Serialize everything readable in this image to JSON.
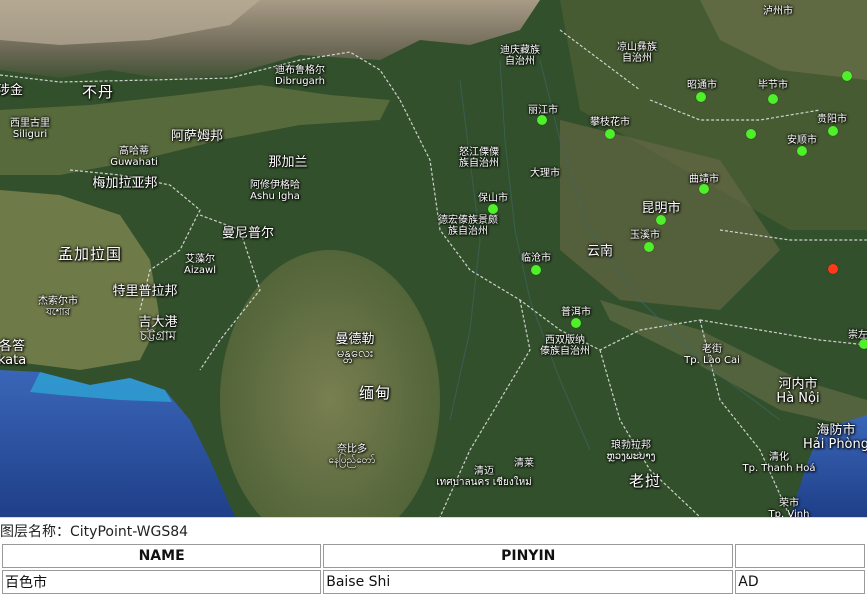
{
  "map": {
    "labels": [
      {
        "name": "label-lhunze",
        "text": "涉金",
        "cls": "lbl-region"
      },
      {
        "name": "label-bhutan",
        "text": "不丹",
        "cls": "lbl-country"
      },
      {
        "name": "label-siliguri",
        "text": "西里古里",
        "sub": "Siliguri",
        "cls": "lbl-small"
      },
      {
        "name": "label-guwahati",
        "text": "高哈蒂",
        "sub": "Guwahati",
        "cls": "lbl-small"
      },
      {
        "name": "label-assam",
        "text": "阿萨姆邦",
        "cls": "lbl-region"
      },
      {
        "name": "label-dibrugarh",
        "text": "迪布鲁格尔",
        "sub": "Dibrugarh",
        "cls": "lbl-small"
      },
      {
        "name": "label-nagaland",
        "text": "那加兰",
        "cls": "lbl-region"
      },
      {
        "name": "label-ashu-igha",
        "text": "阿修伊格哈",
        "sub": "Ashu Igha",
        "cls": "lbl-small"
      },
      {
        "name": "label-meghalaya",
        "text": "梅加拉亚邦",
        "cls": "lbl-region"
      },
      {
        "name": "label-bangladesh",
        "text": "孟加拉国",
        "cls": "lbl-country"
      },
      {
        "name": "label-manipur",
        "text": "曼尼普尔",
        "cls": "lbl-region"
      },
      {
        "name": "label-aizawl",
        "text": "艾藻尔",
        "sub": "Aizawl",
        "cls": "lbl-small"
      },
      {
        "name": "label-tripura",
        "text": "特里普拉邦",
        "cls": "lbl-region"
      },
      {
        "name": "label-sylhet",
        "text": "杰索尔市",
        "sub": "যশোর",
        "cls": "lbl-small"
      },
      {
        "name": "label-chittagong",
        "text": "吉大港",
        "sub": "চট্টগ্রাম",
        "cls": "lbl-region"
      },
      {
        "name": "label-kolkata",
        "text": "各答",
        "sub": "kata",
        "cls": "lbl-region"
      },
      {
        "name": "label-mandalay",
        "text": "曼德勒",
        "sub": "မန္တလေး",
        "cls": "lbl-region"
      },
      {
        "name": "label-myanmar",
        "text": "缅甸",
        "cls": "lbl-country"
      },
      {
        "name": "label-naypyidaw",
        "text": "奈比多",
        "sub": "နေပြည်တော်",
        "cls": "lbl-small"
      },
      {
        "name": "label-diqing",
        "text": "迪庆藏族",
        "sub": "自治州",
        "cls": "lbl-small"
      },
      {
        "name": "label-liangshan",
        "text": "凉山彝族",
        "sub": "自治州",
        "cls": "lbl-small"
      },
      {
        "name": "label-luzhou",
        "text": "泸州市",
        "cls": "lbl-small"
      },
      {
        "name": "label-lijiang",
        "text": "丽江市",
        "cls": "lbl-small"
      },
      {
        "name": "label-panzhihua",
        "text": "攀枝花市",
        "cls": "lbl-small"
      },
      {
        "name": "label-zhaotong",
        "text": "昭通市",
        "cls": "lbl-small"
      },
      {
        "name": "label-bijie",
        "text": "毕节市",
        "cls": "lbl-small"
      },
      {
        "name": "label-guiyang",
        "text": "贵阳市",
        "cls": "lbl-small"
      },
      {
        "name": "label-anshun",
        "text": "安顺市",
        "cls": "lbl-small"
      },
      {
        "name": "label-nujiang",
        "text": "怒江傈僳",
        "sub": "族自治州",
        "cls": "lbl-small"
      },
      {
        "name": "label-dali",
        "text": "大理市",
        "cls": "lbl-small"
      },
      {
        "name": "label-qujing",
        "text": "曲靖市",
        "cls": "lbl-small"
      },
      {
        "name": "label-baoshan",
        "text": "保山市",
        "cls": "lbl-small"
      },
      {
        "name": "label-dehong",
        "text": "德宏傣族景颇",
        "sub": "族自治州",
        "cls": "lbl-small"
      },
      {
        "name": "label-kunming",
        "text": "昆明市",
        "cls": "lbl-region"
      },
      {
        "name": "label-yuxi",
        "text": "玉溪市",
        "cls": "lbl-small"
      },
      {
        "name": "label-yunnan",
        "text": "云南",
        "cls": "lbl-region"
      },
      {
        "name": "label-lincang",
        "text": "临沧市",
        "cls": "lbl-small"
      },
      {
        "name": "label-puer",
        "text": "普洱市",
        "cls": "lbl-small"
      },
      {
        "name": "label-xishuangbanna",
        "text": "西双版纳",
        "sub": "傣族自治州",
        "cls": "lbl-small"
      },
      {
        "name": "label-laocai",
        "text": "老街",
        "sub": "Tp. Lào Cai",
        "cls": "lbl-small"
      },
      {
        "name": "label-hanoi",
        "text": "河内市",
        "sub": "Hà Nội",
        "cls": "lbl-region"
      },
      {
        "name": "label-haiphong",
        "text": "海防市",
        "sub": "Hải Phòng",
        "cls": "lbl-region"
      },
      {
        "name": "label-luangprabang",
        "text": "琅勃拉邦",
        "sub": "ຫຼວງພະບາງ",
        "cls": "lbl-small"
      },
      {
        "name": "label-laos",
        "text": "老挝",
        "cls": "lbl-country"
      },
      {
        "name": "label-thanhhoa",
        "text": "清化",
        "sub": "Tp. Thanh Hoá",
        "cls": "lbl-small"
      },
      {
        "name": "label-chiangmai",
        "text": "清迈",
        "sub": "เทศบาลนคร เชียงใหม่",
        "cls": "lbl-small"
      },
      {
        "name": "label-qingmai-small",
        "text": "清莱",
        "cls": "lbl-small"
      },
      {
        "name": "label-vinh",
        "text": "荣市",
        "sub": "Tp. Vinh",
        "cls": "lbl-small"
      },
      {
        "name": "label-chongzuo",
        "text": "崇左",
        "cls": "lbl-small"
      }
    ],
    "points": [
      {
        "name": "city-point-lijiang",
        "color": "#4ef02a"
      },
      {
        "name": "city-point-panzhihua",
        "color": "#4ef02a"
      },
      {
        "name": "city-point-zhaotong",
        "color": "#4ef02a"
      },
      {
        "name": "city-point-bijie",
        "color": "#4ef02a"
      },
      {
        "name": "city-point-northeast",
        "color": "#4ef02a"
      },
      {
        "name": "city-point-guiyang",
        "color": "#4ef02a"
      },
      {
        "name": "city-point-anshun",
        "color": "#4ef02a"
      },
      {
        "name": "city-point-liupanshui",
        "color": "#4ef02a"
      },
      {
        "name": "city-point-qujing",
        "color": "#4ef02a"
      },
      {
        "name": "city-point-kunming",
        "color": "#4ef02a"
      },
      {
        "name": "city-point-yuxi",
        "color": "#4ef02a"
      },
      {
        "name": "city-point-baoshan",
        "color": "#4ef02a"
      },
      {
        "name": "city-point-lincang",
        "color": "#4ef02a"
      },
      {
        "name": "city-point-puer",
        "color": "#4ef02a"
      },
      {
        "name": "city-point-baise-selected",
        "color": "#ff3a1a"
      },
      {
        "name": "city-point-chongzuo",
        "color": "#4ef02a"
      }
    ]
  },
  "info": {
    "layer_title": "图层名称：CityPoint-WGS84",
    "columns": [
      "NAME",
      "PINYIN",
      ""
    ],
    "rows": [
      [
        "百色市",
        "Baise Shi",
        "AD"
      ]
    ]
  }
}
